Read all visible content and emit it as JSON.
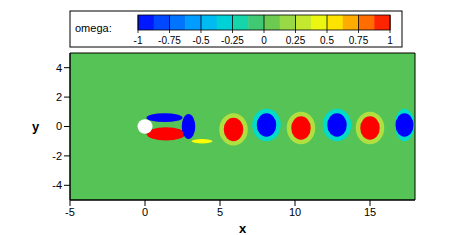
{
  "chart_data": {
    "type": "contour",
    "x_label": "x",
    "y_label": "y",
    "xlim": [
      -5,
      18
    ],
    "xticks": [
      -5,
      0,
      5,
      10,
      15
    ],
    "ylim": [
      -5,
      5
    ],
    "yticks": [
      -4,
      -2,
      0,
      2,
      4
    ],
    "colorbar": {
      "label": "omega:",
      "range": [
        -1,
        1
      ],
      "ticks": [
        -1,
        -0.75,
        -0.5,
        -0.25,
        0,
        0.25,
        0.5,
        0.75,
        1
      ]
    },
    "background": 0,
    "vortices": [
      {
        "x": 3.8,
        "y": -1.0,
        "omega": 0.5,
        "width": 1.4,
        "height": 0.3
      },
      {
        "x": 5.9,
        "y": -0.2,
        "omega": 0.25,
        "width": 1.9,
        "height": 2.2
      },
      {
        "x": 8.1,
        "y": 0.1,
        "omega": -0.25,
        "width": 1.9,
        "height": 2.2
      },
      {
        "x": 10.4,
        "y": -0.1,
        "omega": 0.25,
        "width": 1.9,
        "height": 2.2
      },
      {
        "x": 12.8,
        "y": 0.1,
        "omega": -0.25,
        "width": 1.9,
        "height": 2.2
      },
      {
        "x": 15.0,
        "y": -0.1,
        "omega": 0.25,
        "width": 1.9,
        "height": 2.2
      },
      {
        "x": 17.3,
        "y": 0.1,
        "omega": -0.25,
        "width": 1.3,
        "height": 2.2
      },
      {
        "x": 1.4,
        "y": -0.5,
        "omega": 1,
        "width": 2.6,
        "height": 0.9
      },
      {
        "x": 1.3,
        "y": 0.6,
        "omega": -1,
        "width": 2.4,
        "height": 0.6
      },
      {
        "x": 2.9,
        "y": 0.0,
        "omega": -1,
        "width": 0.9,
        "height": 1.7
      },
      {
        "x": 5.9,
        "y": -0.2,
        "omega": 1,
        "width": 1.3,
        "height": 1.6
      },
      {
        "x": 8.1,
        "y": 0.1,
        "omega": -1,
        "width": 1.3,
        "height": 1.6
      },
      {
        "x": 10.4,
        "y": -0.1,
        "omega": 1,
        "width": 1.3,
        "height": 1.6
      },
      {
        "x": 12.8,
        "y": 0.1,
        "omega": -1,
        "width": 1.3,
        "height": 1.6
      },
      {
        "x": 15.0,
        "y": -0.1,
        "omega": 1,
        "width": 1.3,
        "height": 1.6
      },
      {
        "x": 17.3,
        "y": 0.1,
        "omega": -1,
        "width": 1.2,
        "height": 1.6
      }
    ],
    "cylinder": {
      "x": 0,
      "y": 0,
      "diameter": 1
    }
  }
}
